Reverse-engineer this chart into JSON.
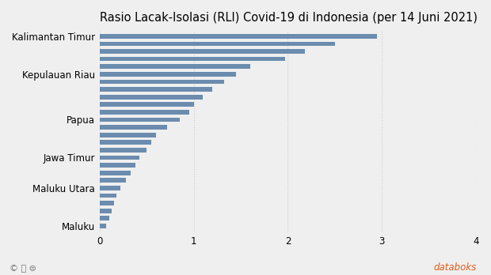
{
  "title": "Rasio Lacak-Isolasi (RLI) Covid-19 di Indonesia (per 14 Juni 2021)",
  "bar_color": "#6b8cae",
  "background_color": "#efefef",
  "xlim": [
    0,
    4
  ],
  "xticks": [
    0,
    1,
    2,
    3,
    4
  ],
  "values": [
    2.95,
    2.5,
    2.18,
    1.97,
    1.6,
    1.45,
    1.32,
    1.2,
    1.1,
    1.0,
    0.95,
    0.85,
    0.72,
    0.6,
    0.55,
    0.5,
    0.42,
    0.38,
    0.33,
    0.28,
    0.22,
    0.18,
    0.15,
    0.13,
    0.1,
    0.07
  ],
  "named_labels": {
    "0": "Kalimantan Timur",
    "5": "Kepulauan Riau",
    "11": "Papua",
    "16": "Jawa Timur",
    "20": "Maluku Utara",
    "25": "Maluku"
  },
  "title_fontsize": 10.5,
  "tick_fontsize": 8.5,
  "copyright_text": "© ⓘ ⊜",
  "databoks_text": " databoks",
  "databoks_color": "#e05c1a",
  "copyright_color": "#777777"
}
